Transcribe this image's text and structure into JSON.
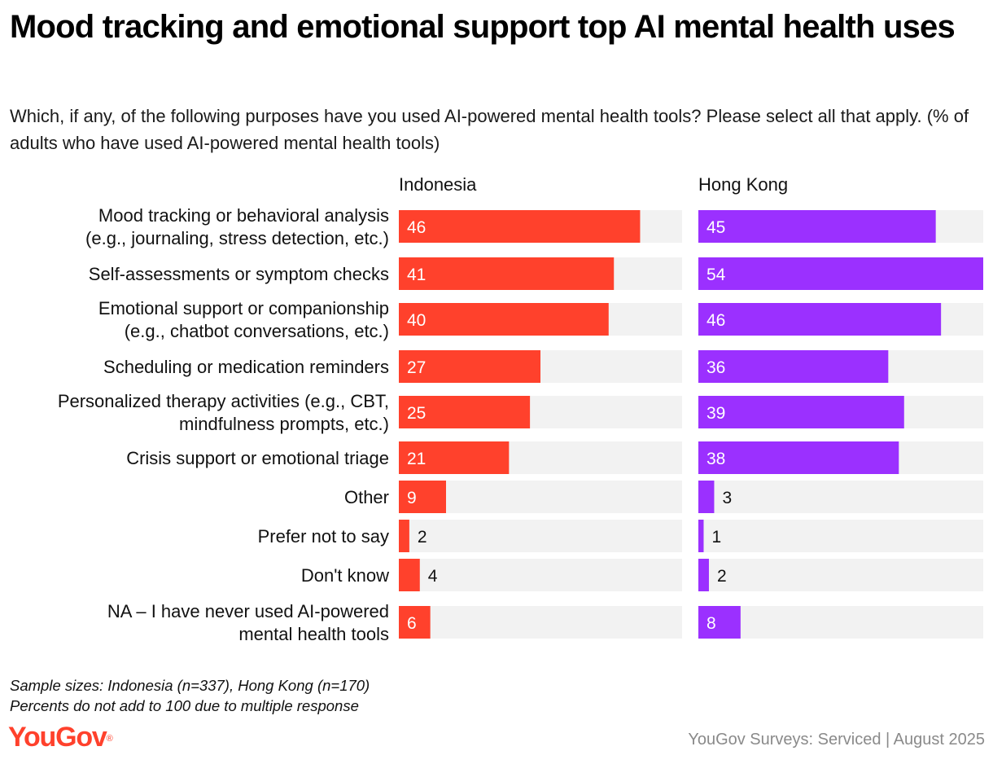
{
  "title": "Mood tracking and emotional support top AI mental health uses",
  "subtitle": "Which, if any, of the following purposes have you used AI-powered mental health tools? Please select all that apply. (% of adults who have used AI-powered mental health tools)",
  "footnotes": [
    "Sample sizes: Indonesia (n=337), Hong Kong (n=170)",
    "Percents do not add to 100 due to multiple response"
  ],
  "logo": {
    "text": "YouGov",
    "mark": "®"
  },
  "source": "YouGov Surveys: Serviced | August 2025",
  "colors": {
    "indonesia": "#ff412c",
    "hong_kong": "#9b30ff",
    "track": "#f2f2f2",
    "label_inside": "#ffffff",
    "label_outside": "#111111"
  },
  "chart_data": {
    "type": "bar",
    "orientation": "horizontal",
    "title": "Mood tracking and emotional support top AI mental health uses",
    "xlabel": "",
    "ylabel": "",
    "xlim": [
      0,
      54
    ],
    "categories": [
      [
        "Mood tracking or behavioral analysis",
        "(e.g., journaling, stress detection, etc.)"
      ],
      [
        "Self-assessments or symptom checks"
      ],
      [
        "Emotional support or companionship",
        "(e.g., chatbot conversations, etc.)"
      ],
      [
        "Scheduling or medication reminders"
      ],
      [
        "Personalized therapy activities (e.g., CBT,",
        "mindfulness prompts, etc.)"
      ],
      [
        "Crisis support or emotional triage"
      ],
      [
        "Other"
      ],
      [
        "Prefer not to say"
      ],
      [
        "Don't know"
      ],
      [
        "NA – I have never used AI-powered",
        "mental health tools"
      ]
    ],
    "series": [
      {
        "name": "Indonesia",
        "color_key": "indonesia",
        "values": [
          46,
          41,
          40,
          27,
          25,
          21,
          9,
          2,
          4,
          6
        ]
      },
      {
        "name": "Hong Kong",
        "color_key": "hong_kong",
        "values": [
          45,
          54,
          46,
          36,
          39,
          38,
          3,
          1,
          2,
          8
        ]
      }
    ]
  }
}
